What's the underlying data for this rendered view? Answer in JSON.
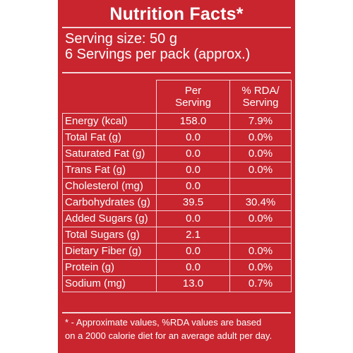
{
  "title": "Nutrition Facts*",
  "serving_size": "Serving size: 50 g",
  "servings_per_pack": "6 Servings per pack (approx.)",
  "columns": {
    "per_serving_line1": "Per",
    "per_serving_line2": "Serving",
    "rda_line1": "% RDA/",
    "rda_line2": "Serving"
  },
  "rows": [
    {
      "nutrient": "Energy (kcal)",
      "per_serving": "158.0",
      "rda": "7.9%"
    },
    {
      "nutrient": "Total Fat (g)",
      "per_serving": "0.0",
      "rda": "0.0%"
    },
    {
      "nutrient": "Saturated Fat (g)",
      "per_serving": "0.0",
      "rda": "0.0%"
    },
    {
      "nutrient": "Trans Fat (g)",
      "per_serving": "0.0",
      "rda": "0.0%"
    },
    {
      "nutrient": "Cholesterol (mg)",
      "per_serving": "0.0",
      "rda": ""
    },
    {
      "nutrient": "Carbohydrates (g)",
      "per_serving": "39.5",
      "rda": "30.4%"
    },
    {
      "nutrient": "Added Sugars (g)",
      "per_serving": "0.0",
      "rda": "0.0%"
    },
    {
      "nutrient": "Total Sugars (g)",
      "per_serving": "2.1",
      "rda": ""
    },
    {
      "nutrient": "Dietary Fiber (g)",
      "per_serving": "0.0",
      "rda": "0.0%"
    },
    {
      "nutrient": "Protein (g)",
      "per_serving": "0.0",
      "rda": "0.0%"
    },
    {
      "nutrient": "Sodium (mg)",
      "per_serving": "13.0",
      "rda": "0.7%"
    }
  ],
  "footnote_line1": "* - Approximate values, %RDA values are based",
  "footnote_line2": "on a 2000 calorie diet for an average adult per day.",
  "colors": {
    "panel_background": "#c8252f",
    "text": "#ffffff",
    "rules": "#f3d6d8"
  }
}
